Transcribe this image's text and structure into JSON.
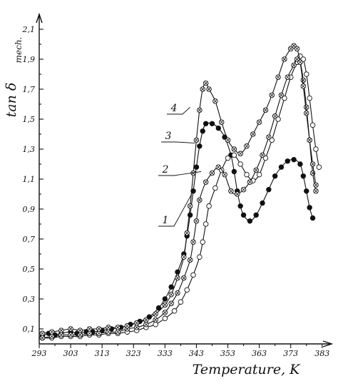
{
  "chart_data": {
    "type": "line",
    "xlabel": "Temperature, K",
    "ylabel": "tan δ",
    "ylabel_subscript": "mech.",
    "xlim": [
      293,
      386
    ],
    "ylim": [
      0.0,
      2.2
    ],
    "x_ticks": [
      293,
      303,
      313,
      323,
      333,
      343,
      353,
      363,
      373,
      383
    ],
    "y_ticks": [
      0.1,
      0.3,
      0.5,
      0.7,
      0.9,
      1.1,
      1.3,
      1.5,
      1.7,
      1.9,
      2.1
    ],
    "y_tick_labels": [
      "0,1",
      "0,3",
      "0,5",
      "0,7",
      "0,9",
      "1,1",
      "1,3",
      "1,5",
      "1,7",
      "1,9",
      "2,1"
    ],
    "grid": false,
    "legend": "none",
    "series": [
      {
        "name": "1",
        "marker": "filled-circle",
        "points": [
          [
            294,
            0.05
          ],
          [
            296,
            0.07
          ],
          [
            298,
            0.06
          ],
          [
            300,
            0.07
          ],
          [
            303,
            0.08
          ],
          [
            305,
            0.07
          ],
          [
            308,
            0.08
          ],
          [
            310,
            0.08
          ],
          [
            313,
            0.09
          ],
          [
            316,
            0.1
          ],
          [
            319,
            0.11
          ],
          [
            322,
            0.13
          ],
          [
            325,
            0.15
          ],
          [
            328,
            0.18
          ],
          [
            331,
            0.24
          ],
          [
            333,
            0.3
          ],
          [
            335,
            0.38
          ],
          [
            337,
            0.48
          ],
          [
            339,
            0.6
          ],
          [
            340,
            0.72
          ],
          [
            341,
            0.86
          ],
          [
            342,
            1.02
          ],
          [
            343,
            1.18
          ],
          [
            344,
            1.32
          ],
          [
            345,
            1.42
          ],
          [
            346,
            1.47
          ],
          [
            348,
            1.47
          ],
          [
            350,
            1.44
          ],
          [
            352,
            1.38
          ],
          [
            354,
            1.26
          ],
          [
            355,
            1.15
          ],
          [
            356,
            1.02
          ],
          [
            357,
            0.92
          ],
          [
            358,
            0.86
          ],
          [
            360,
            0.82
          ],
          [
            362,
            0.86
          ],
          [
            364,
            0.94
          ],
          [
            366,
            1.03
          ],
          [
            368,
            1.12
          ],
          [
            370,
            1.18
          ],
          [
            372,
            1.22
          ],
          [
            374,
            1.23
          ],
          [
            376,
            1.2
          ],
          [
            377,
            1.12
          ],
          [
            378,
            1.02
          ],
          [
            379,
            0.91
          ],
          [
            380,
            0.84
          ]
        ]
      },
      {
        "name": "2",
        "marker": "open-circle",
        "points": [
          [
            294,
            0.04
          ],
          [
            297,
            0.04
          ],
          [
            300,
            0.05
          ],
          [
            303,
            0.05
          ],
          [
            306,
            0.05
          ],
          [
            309,
            0.06
          ],
          [
            312,
            0.06
          ],
          [
            315,
            0.07
          ],
          [
            318,
            0.07
          ],
          [
            321,
            0.08
          ],
          [
            324,
            0.09
          ],
          [
            327,
            0.11
          ],
          [
            330,
            0.13
          ],
          [
            333,
            0.17
          ],
          [
            336,
            0.22
          ],
          [
            338,
            0.28
          ],
          [
            340,
            0.36
          ],
          [
            342,
            0.46
          ],
          [
            344,
            0.58
          ],
          [
            345,
            0.68
          ],
          [
            346,
            0.8
          ],
          [
            347,
            0.92
          ],
          [
            349,
            1.04
          ],
          [
            351,
            1.16
          ],
          [
            353,
            1.24
          ],
          [
            355,
            1.26
          ],
          [
            357,
            1.2
          ],
          [
            359,
            1.13
          ],
          [
            361,
            1.09
          ],
          [
            363,
            1.13
          ],
          [
            365,
            1.24
          ],
          [
            367,
            1.36
          ],
          [
            369,
            1.5
          ],
          [
            371,
            1.64
          ],
          [
            373,
            1.78
          ],
          [
            375,
            1.88
          ],
          [
            376,
            1.92
          ],
          [
            377,
            1.9
          ],
          [
            378,
            1.8
          ],
          [
            379,
            1.64
          ],
          [
            380,
            1.46
          ],
          [
            381,
            1.3
          ],
          [
            382,
            1.18
          ]
        ]
      },
      {
        "name": "3",
        "marker": "crossed-circle",
        "points": [
          [
            294,
            0.04
          ],
          [
            297,
            0.05
          ],
          [
            300,
            0.06
          ],
          [
            303,
            0.06
          ],
          [
            306,
            0.06
          ],
          [
            309,
            0.07
          ],
          [
            312,
            0.07
          ],
          [
            315,
            0.08
          ],
          [
            318,
            0.08
          ],
          [
            321,
            0.1
          ],
          [
            324,
            0.11
          ],
          [
            327,
            0.13
          ],
          [
            330,
            0.16
          ],
          [
            333,
            0.21
          ],
          [
            335,
            0.27
          ],
          [
            337,
            0.34
          ],
          [
            339,
            0.44
          ],
          [
            341,
            0.56
          ],
          [
            342,
            0.68
          ],
          [
            343,
            0.82
          ],
          [
            344,
            0.96
          ],
          [
            346,
            1.08
          ],
          [
            348,
            1.14
          ],
          [
            350,
            1.18
          ],
          [
            352,
            1.13
          ],
          [
            354,
            1.02
          ],
          [
            356,
            1.0
          ],
          [
            358,
            1.03
          ],
          [
            360,
            1.08
          ],
          [
            362,
            1.16
          ],
          [
            364,
            1.26
          ],
          [
            366,
            1.38
          ],
          [
            368,
            1.52
          ],
          [
            370,
            1.66
          ],
          [
            372,
            1.78
          ],
          [
            374,
            1.86
          ],
          [
            375,
            1.9
          ],
          [
            376,
            1.88
          ],
          [
            377,
            1.76
          ],
          [
            378,
            1.58
          ],
          [
            379,
            1.36
          ],
          [
            380,
            1.14
          ],
          [
            381,
            1.02
          ]
        ]
      },
      {
        "name": "4",
        "marker": "crossed-circle",
        "points": [
          [
            294,
            0.07
          ],
          [
            297,
            0.08
          ],
          [
            300,
            0.09
          ],
          [
            303,
            0.1
          ],
          [
            306,
            0.09
          ],
          [
            309,
            0.1
          ],
          [
            312,
            0.1
          ],
          [
            315,
            0.11
          ],
          [
            318,
            0.11
          ],
          [
            321,
            0.12
          ],
          [
            324,
            0.14
          ],
          [
            327,
            0.16
          ],
          [
            330,
            0.2
          ],
          [
            333,
            0.26
          ],
          [
            335,
            0.33
          ],
          [
            337,
            0.44
          ],
          [
            339,
            0.58
          ],
          [
            340,
            0.74
          ],
          [
            341,
            0.92
          ],
          [
            342,
            1.14
          ],
          [
            343,
            1.36
          ],
          [
            344,
            1.56
          ],
          [
            345,
            1.7
          ],
          [
            346,
            1.74
          ],
          [
            347,
            1.7
          ],
          [
            349,
            1.62
          ],
          [
            351,
            1.48
          ],
          [
            353,
            1.36
          ],
          [
            355,
            1.3
          ],
          [
            357,
            1.27
          ],
          [
            359,
            1.32
          ],
          [
            361,
            1.4
          ],
          [
            363,
            1.48
          ],
          [
            365,
            1.56
          ],
          [
            367,
            1.66
          ],
          [
            369,
            1.78
          ],
          [
            371,
            1.9
          ],
          [
            373,
            1.97
          ],
          [
            374,
            1.99
          ],
          [
            375,
            1.97
          ],
          [
            376,
            1.88
          ],
          [
            377,
            1.72
          ],
          [
            378,
            1.54
          ],
          [
            379,
            1.36
          ],
          [
            380,
            1.2
          ],
          [
            381,
            1.06
          ]
        ]
      }
    ],
    "curve_labels": [
      {
        "text": "1",
        "at": [
          341.5,
          1.0
        ]
      },
      {
        "text": "2",
        "at": [
          344.5,
          1.15
        ]
      },
      {
        "text": "3",
        "at": [
          342.5,
          1.34
        ]
      },
      {
        "text": "4",
        "at": [
          341.0,
          1.58
        ]
      }
    ]
  }
}
